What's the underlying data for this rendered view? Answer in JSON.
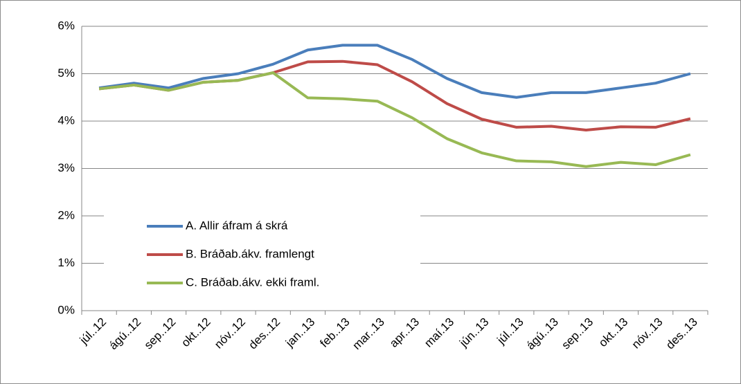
{
  "chart_data": {
    "type": "line",
    "categories": [
      "júl..12",
      "ágú..12",
      "sep..12",
      "okt..12",
      "nóv..12",
      "des..12",
      "jan..13",
      "feb..13",
      "mar..13",
      "apr..13",
      "maí.13",
      "jún..13",
      "júl..13",
      "ágú..13",
      "sep..13",
      "okt..13",
      "nóv..13",
      "des..13"
    ],
    "series": [
      {
        "name": "A. Allir áfram á skrá",
        "color": "#4a7ebb",
        "values": [
          4.7,
          4.8,
          4.7,
          4.9,
          5.0,
          5.2,
          5.5,
          5.6,
          5.6,
          5.3,
          4.9,
          4.6,
          4.5,
          4.6,
          4.6,
          4.7,
          4.8,
          5.0
        ]
      },
      {
        "name": "B. Bráðab.ákv. framlengt",
        "color": "#be4b48",
        "values": [
          4.68,
          4.76,
          4.65,
          4.82,
          4.86,
          5.02,
          5.25,
          5.26,
          5.19,
          4.83,
          4.37,
          4.04,
          3.87,
          3.89,
          3.81,
          3.88,
          3.87,
          4.05
        ]
      },
      {
        "name": "C. Bráðab.ákv. ekki framl.",
        "color": "#98b954",
        "values": [
          4.68,
          4.76,
          4.65,
          4.82,
          4.86,
          5.02,
          4.49,
          4.47,
          4.42,
          4.07,
          3.63,
          3.33,
          3.16,
          3.14,
          3.04,
          3.13,
          3.08,
          3.29
        ]
      }
    ],
    "ylim": [
      0,
      6
    ],
    "yticks": [
      {
        "value": 0,
        "label": "0%"
      },
      {
        "value": 1,
        "label": "1%"
      },
      {
        "value": 2,
        "label": "2%"
      },
      {
        "value": 3,
        "label": "3%"
      },
      {
        "value": 4,
        "label": "4%"
      },
      {
        "value": 5,
        "label": "5%"
      },
      {
        "value": 6,
        "label": "6%"
      }
    ],
    "grid": true,
    "legend": "left"
  }
}
